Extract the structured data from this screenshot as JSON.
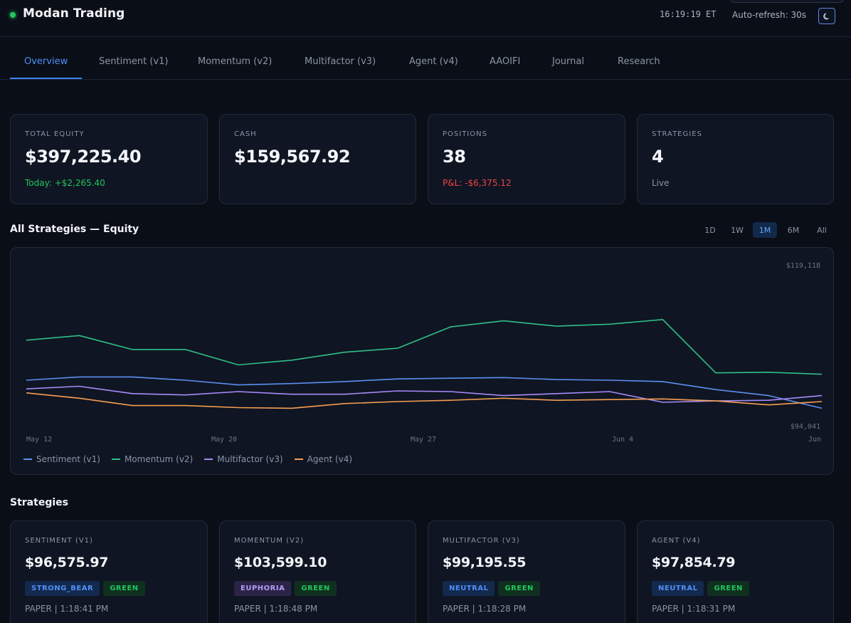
{
  "header": {
    "app_title": "Modan Trading",
    "clock": "16:19:19 ET",
    "auto_refresh": "Auto-refresh: 30s",
    "theme_icon": "moon-icon"
  },
  "tabs": [
    {
      "label": "Overview",
      "active": true
    },
    {
      "label": "Sentiment (v1)",
      "active": false
    },
    {
      "label": "Momentum (v2)",
      "active": false
    },
    {
      "label": "Multifactor (v3)",
      "active": false
    },
    {
      "label": "Agent (v4)",
      "active": false
    },
    {
      "label": "AAOIFI",
      "active": false
    },
    {
      "label": "Journal",
      "active": false
    },
    {
      "label": "Research",
      "active": false
    }
  ],
  "stats": [
    {
      "label": "TOTAL EQUITY",
      "value": "$397,225.40",
      "sub": "Today: +$2,265.40",
      "sub_tone": "green"
    },
    {
      "label": "CASH",
      "value": "$159,567.92",
      "sub": "",
      "sub_tone": "muted"
    },
    {
      "label": "POSITIONS",
      "value": "38",
      "sub": "P&L: -$6,375.12",
      "sub_tone": "red"
    },
    {
      "label": "STRATEGIES",
      "value": "4",
      "sub": "Live",
      "sub_tone": "muted"
    }
  ],
  "equity_section": {
    "title": "All Strategies — Equity",
    "ranges": [
      {
        "label": "1D",
        "active": false
      },
      {
        "label": "1W",
        "active": false
      },
      {
        "label": "1M",
        "active": true
      },
      {
        "label": "6M",
        "active": false
      },
      {
        "label": "All",
        "active": false
      }
    ]
  },
  "chart_data": {
    "type": "line",
    "y_max_label": "$119,118",
    "y_min_label": "$94,041",
    "ylim": [
      94041,
      119118
    ],
    "x_tick_labels": [
      "May 12",
      "May 20",
      "May 27",
      "Jun 4",
      "Jun"
    ],
    "x": [
      "May 12",
      "May 14",
      "May 16",
      "May 18",
      "May 20",
      "May 22",
      "May 24",
      "May 26",
      "May 28",
      "May 30",
      "Jun 1",
      "Jun 3",
      "Jun 5",
      "Jun 7",
      "Jun 9",
      "Jun 11"
    ],
    "series": [
      {
        "name": "Sentiment (v1)",
        "color": "#5b8ff0",
        "values": [
          101400,
          101900,
          101900,
          101400,
          100700,
          100900,
          101200,
          101600,
          101700,
          101800,
          101500,
          101400,
          101200,
          100000,
          99100,
          97200
        ]
      },
      {
        "name": "Momentum (v2)",
        "color": "#2fbf87",
        "values": [
          107400,
          108100,
          106000,
          106000,
          103700,
          104400,
          105600,
          106200,
          109400,
          110300,
          109500,
          109800,
          110500,
          102500,
          102600,
          102300
        ]
      },
      {
        "name": "Multifactor (v3)",
        "color": "#a78bfa",
        "values": [
          100100,
          100500,
          99400,
          99200,
          99700,
          99300,
          99300,
          99800,
          99700,
          99100,
          99400,
          99700,
          98100,
          98300,
          98400,
          99100
        ]
      },
      {
        "name": "Agent (v4)",
        "color": "#f59e52",
        "values": [
          99500,
          98700,
          97600,
          97600,
          97300,
          97200,
          97900,
          98200,
          98400,
          98700,
          98400,
          98500,
          98600,
          98300,
          97700,
          98200
        ]
      }
    ],
    "legend_position": "bottom-left",
    "grid": false
  },
  "strategies_section": {
    "title": "Strategies",
    "cards": [
      {
        "label": "SENTIMENT (V1)",
        "value": "$96,575.97",
        "badges": [
          {
            "text": "STRONG_BEAR",
            "tone": "blue"
          },
          {
            "text": "GREEN",
            "tone": "green"
          }
        ],
        "meta": "PAPER | 1:18:41 PM"
      },
      {
        "label": "MOMENTUM (V2)",
        "value": "$103,599.10",
        "badges": [
          {
            "text": "EUPHORIA",
            "tone": "purple"
          },
          {
            "text": "GREEN",
            "tone": "green"
          }
        ],
        "meta": "PAPER | 1:18:48 PM"
      },
      {
        "label": "MULTIFACTOR (V3)",
        "value": "$99,195.55",
        "badges": [
          {
            "text": "NEUTRAL",
            "tone": "blue"
          },
          {
            "text": "GREEN",
            "tone": "green"
          }
        ],
        "meta": "PAPER | 1:18:28 PM"
      },
      {
        "label": "AGENT (V4)",
        "value": "$97,854.79",
        "badges": [
          {
            "text": "NEUTRAL",
            "tone": "blue"
          },
          {
            "text": "GREEN",
            "tone": "green"
          }
        ],
        "meta": "PAPER | 1:18:31 PM"
      }
    ]
  }
}
